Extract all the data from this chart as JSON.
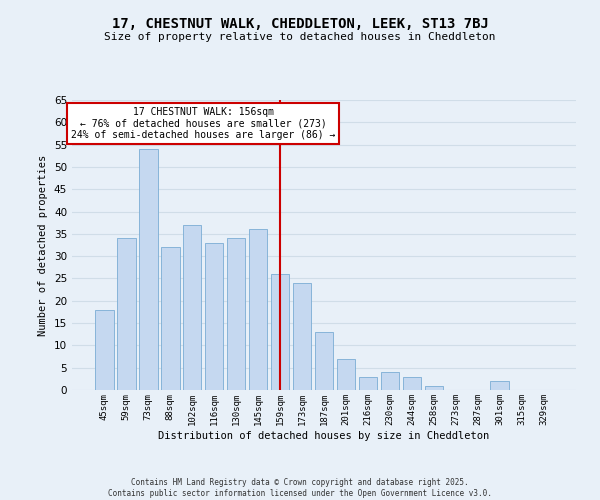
{
  "title": "17, CHESTNUT WALK, CHEDDLETON, LEEK, ST13 7BJ",
  "subtitle": "Size of property relative to detached houses in Cheddleton",
  "xlabel": "Distribution of detached houses by size in Cheddleton",
  "ylabel": "Number of detached properties",
  "bar_labels": [
    "45sqm",
    "59sqm",
    "73sqm",
    "88sqm",
    "102sqm",
    "116sqm",
    "130sqm",
    "145sqm",
    "159sqm",
    "173sqm",
    "187sqm",
    "201sqm",
    "216sqm",
    "230sqm",
    "244sqm",
    "258sqm",
    "273sqm",
    "287sqm",
    "301sqm",
    "315sqm",
    "329sqm"
  ],
  "bar_values": [
    18,
    34,
    54,
    32,
    37,
    33,
    34,
    36,
    26,
    24,
    13,
    7,
    3,
    4,
    3,
    1,
    0,
    0,
    2,
    0,
    0
  ],
  "bar_color": "#c5d8f0",
  "bar_edge_color": "#7aadd4",
  "vline_x": 8,
  "vline_color": "#cc0000",
  "annotation_title": "17 CHESTNUT WALK: 156sqm",
  "annotation_line1": "← 76% of detached houses are smaller (273)",
  "annotation_line2": "24% of semi-detached houses are larger (86) →",
  "annotation_box_color": "#ffffff",
  "annotation_border_color": "#cc0000",
  "ylim": [
    0,
    65
  ],
  "yticks": [
    0,
    5,
    10,
    15,
    20,
    25,
    30,
    35,
    40,
    45,
    50,
    55,
    60,
    65
  ],
  "grid_color": "#d0dde8",
  "background_color": "#e8f0f8",
  "footer1": "Contains HM Land Registry data © Crown copyright and database right 2025.",
  "footer2": "Contains public sector information licensed under the Open Government Licence v3.0."
}
